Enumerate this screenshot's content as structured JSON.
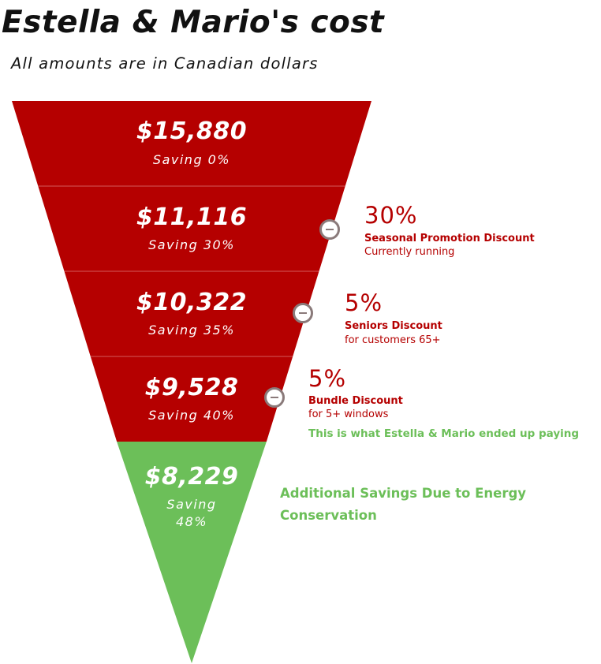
{
  "title": "Estella & Mario's cost",
  "subtitle": "All amounts are in Canadian dollars",
  "colors": {
    "discount_tier": "#b50000",
    "final_tier": "#6cbf59",
    "divider": "#d45a5a",
    "minus_icon": "#8a7a7a"
  },
  "tiers": [
    {
      "amount": "$15,880",
      "saving_label": "Saving 0%",
      "saving_percent": 0
    },
    {
      "amount": "$11,116",
      "saving_label": "Saving 30%",
      "saving_percent": 30
    },
    {
      "amount": "$10,322",
      "saving_label": "Saving 35%",
      "saving_percent": 35
    },
    {
      "amount": "$9,528",
      "saving_label": "Saving 40%",
      "saving_percent": 40
    },
    {
      "amount": "$8,229",
      "saving_label": "Saving 48%",
      "saving_percent": 48
    }
  ],
  "discounts": [
    {
      "percent": "30%",
      "name": "Seasonal Promotion Discount",
      "note": "Currently running",
      "icon": "minus-circle-icon"
    },
    {
      "percent": "5%",
      "name": "Seniors Discount",
      "note": "for customers 65+",
      "icon": "minus-circle-icon"
    },
    {
      "percent": "5%",
      "name": "Bundle Discount",
      "note": "for 5+ windows",
      "icon": "minus-circle-icon"
    }
  ],
  "paid_note": "This is what Estella & Mario ended up paying",
  "energy_note": "Additional Savings Due to Energy Conservation"
}
